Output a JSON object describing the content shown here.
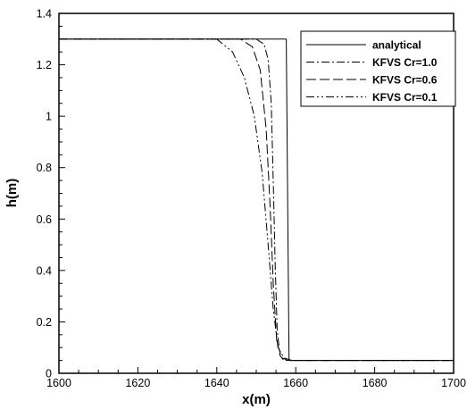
{
  "chart_data": {
    "type": "line",
    "title": "",
    "xlabel": "x(m)",
    "ylabel": "h(m)",
    "xlim": [
      1600,
      1700
    ],
    "ylim": [
      0,
      1.4
    ],
    "x_ticks": [
      1600,
      1620,
      1640,
      1660,
      1680,
      1700
    ],
    "x_tick_labels": [
      "1600",
      "1620",
      "1640",
      "1660",
      "1680",
      "1700"
    ],
    "y_ticks": [
      0,
      0.2,
      0.4,
      0.6,
      0.8,
      1.0,
      1.2,
      1.4
    ],
    "y_tick_labels": [
      "0",
      "0.2",
      "0.4",
      "0.6",
      "0.8",
      "1",
      "1.2",
      "1.4"
    ],
    "grid": false,
    "legend_position": "top-right",
    "series": [
      {
        "name": "analytical",
        "color": "#000000",
        "dash": "solid",
        "points": [
          [
            1600,
            1.3
          ],
          [
            1657.6,
            1.3
          ],
          [
            1658.3,
            0.05
          ],
          [
            1700,
            0.05
          ]
        ]
      },
      {
        "name": "KFVS Cr=1.0",
        "color": "#000000",
        "dash": "dashdot",
        "points": [
          [
            1600,
            1.3
          ],
          [
            1650,
            1.3
          ],
          [
            1652,
            1.28
          ],
          [
            1653,
            1.22
          ],
          [
            1653.8,
            1.05
          ],
          [
            1654.3,
            0.75
          ],
          [
            1654.8,
            0.42
          ],
          [
            1655.3,
            0.17
          ],
          [
            1656,
            0.07
          ],
          [
            1657,
            0.05
          ],
          [
            1700,
            0.05
          ]
        ]
      },
      {
        "name": "KFVS Cr=0.6",
        "color": "#000000",
        "dash": "dash",
        "points": [
          [
            1600,
            1.3
          ],
          [
            1646,
            1.3
          ],
          [
            1649,
            1.27
          ],
          [
            1651,
            1.18
          ],
          [
            1652.5,
            0.95
          ],
          [
            1653.5,
            0.65
          ],
          [
            1654.3,
            0.35
          ],
          [
            1655.2,
            0.12
          ],
          [
            1656.5,
            0.06
          ],
          [
            1658,
            0.05
          ],
          [
            1700,
            0.05
          ]
        ]
      },
      {
        "name": "KFVS Cr=0.1",
        "color": "#000000",
        "dash": "dashdotdot",
        "points": [
          [
            1600,
            1.3
          ],
          [
            1640,
            1.3
          ],
          [
            1644,
            1.25
          ],
          [
            1647,
            1.15
          ],
          [
            1649.5,
            1.0
          ],
          [
            1651.5,
            0.78
          ],
          [
            1653,
            0.5
          ],
          [
            1654.3,
            0.25
          ],
          [
            1655.5,
            0.1
          ],
          [
            1657,
            0.06
          ],
          [
            1659,
            0.05
          ],
          [
            1700,
            0.05
          ]
        ]
      }
    ]
  }
}
